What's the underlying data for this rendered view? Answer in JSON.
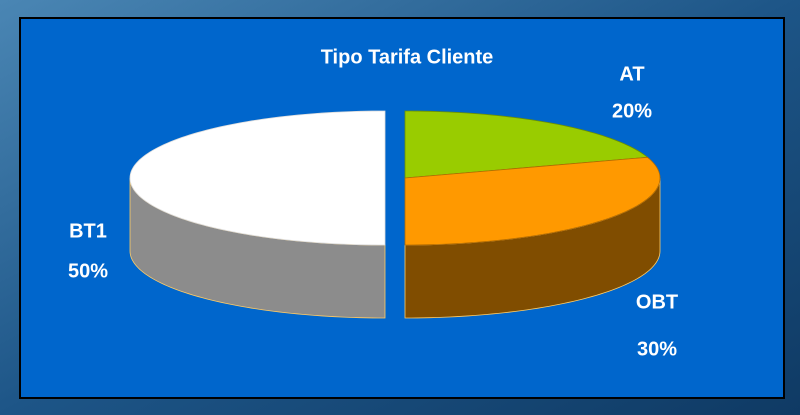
{
  "chart_data": {
    "type": "pie",
    "title": "Tipo Tarifa Cliente",
    "categories": [
      "AT",
      "OBT",
      "BT1"
    ],
    "values": [
      20,
      30,
      50
    ],
    "value_labels": [
      "20%",
      "30%",
      "50%"
    ],
    "colors": [
      "#99cc00",
      "#ff9900",
      "#ffffff"
    ]
  }
}
